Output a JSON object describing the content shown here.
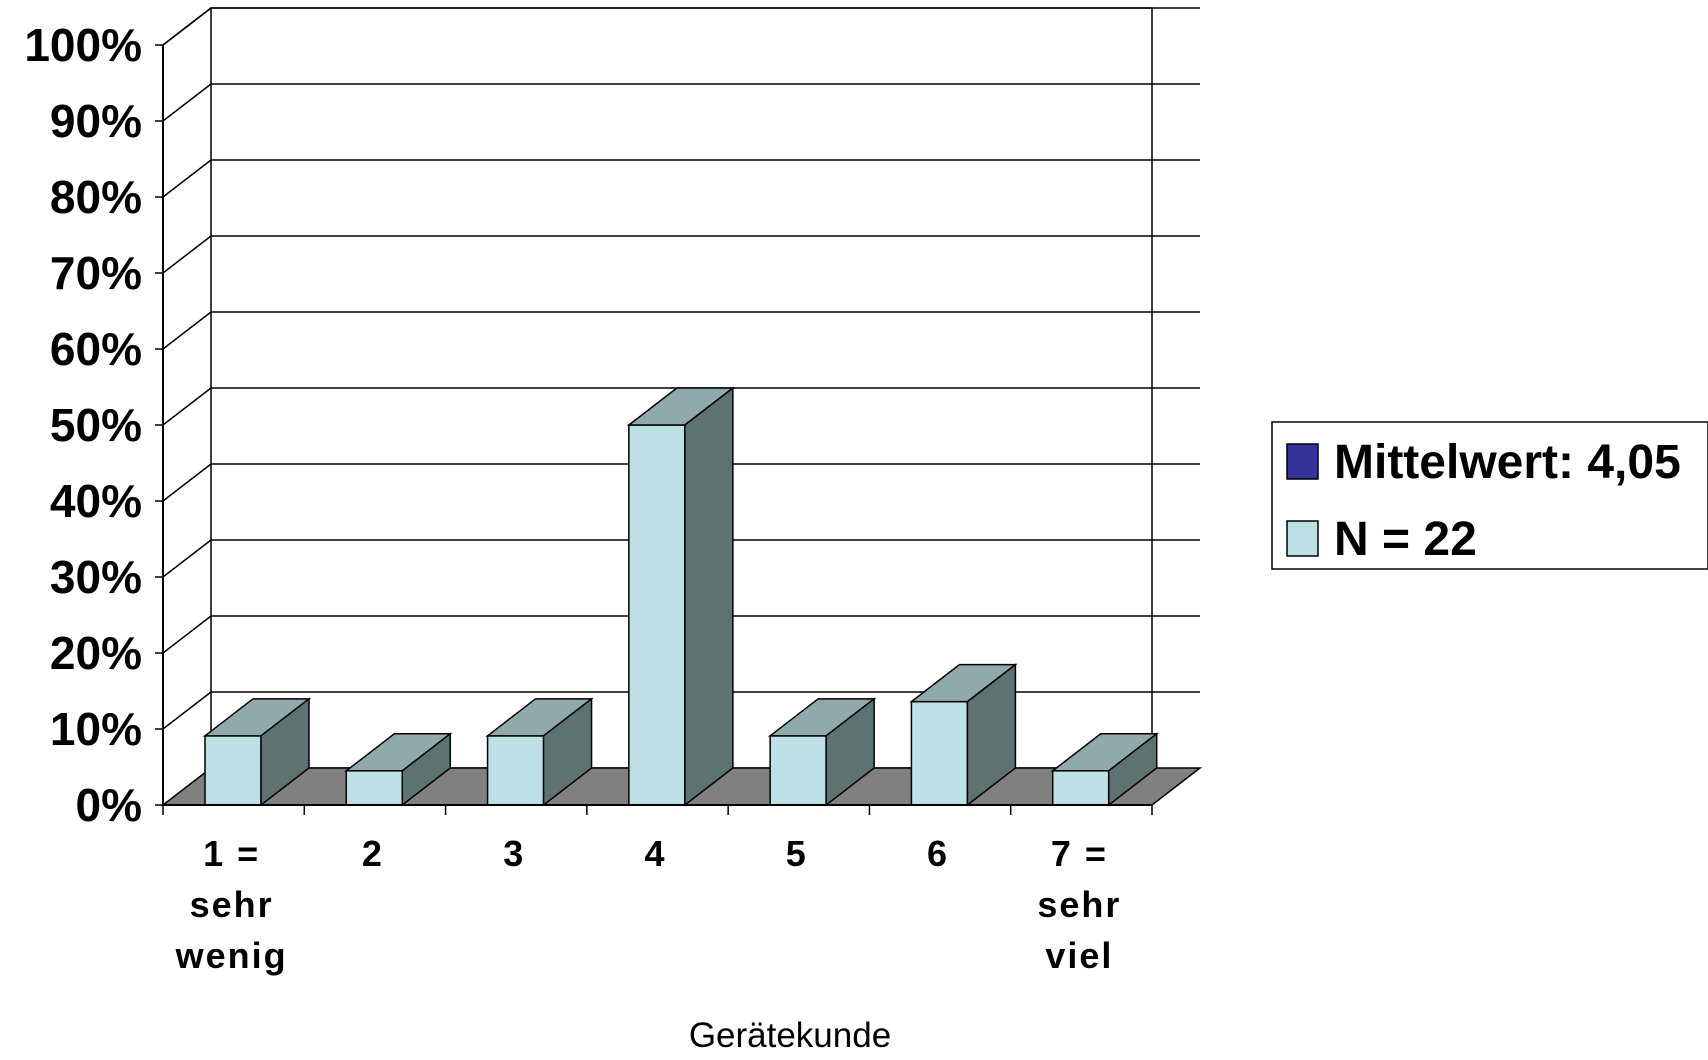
{
  "chart_data": {
    "type": "bar",
    "categories": [
      [
        "1 =",
        "sehr",
        "wenig"
      ],
      [
        "2"
      ],
      [
        "3"
      ],
      [
        "4"
      ],
      [
        "5"
      ],
      [
        "6"
      ],
      [
        "7 =",
        "sehr",
        "viel"
      ]
    ],
    "series": [
      {
        "values": [
          9.1,
          4.5,
          9.1,
          50.0,
          9.1,
          13.6,
          4.5
        ]
      }
    ],
    "yticks": [
      "0%",
      "10%",
      "20%",
      "30%",
      "40%",
      "50%",
      "60%",
      "70%",
      "80%",
      "90%",
      "100%"
    ],
    "ylim": [
      0,
      100
    ],
    "xlabel": "Gerätekunde",
    "ylabel": "",
    "title": "",
    "grid": true,
    "three_d": true,
    "legend": {
      "position": "right",
      "entries": [
        {
          "label": "Mittelwert: 4,05",
          "color": "#333399"
        },
        {
          "label": "N = 22",
          "color": "#bde0e4"
        }
      ]
    },
    "colors": {
      "bar_front": "#bde0e4",
      "bar_top": "#8fa9ad",
      "bar_side": "#5f7272",
      "floor": "#808080",
      "grid": "#000000"
    }
  }
}
